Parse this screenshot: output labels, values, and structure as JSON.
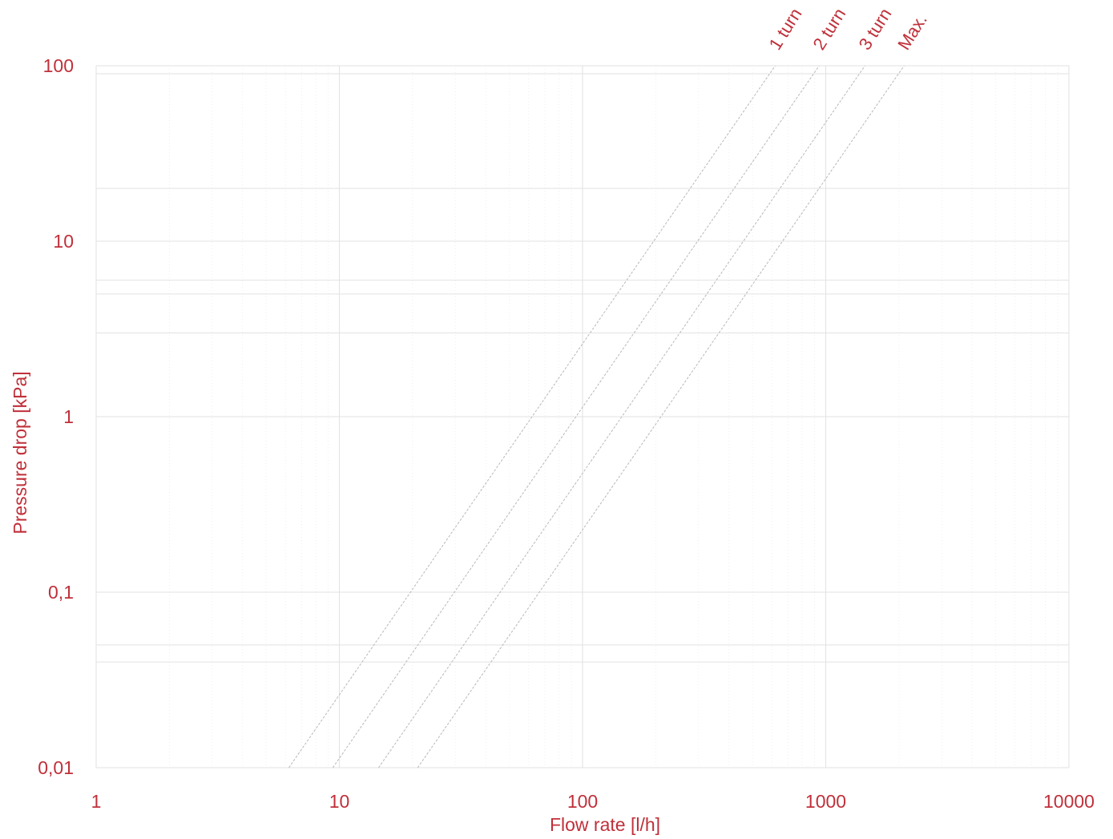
{
  "chart_data": {
    "type": "line",
    "xscale": "log",
    "yscale": "log",
    "xlim": [
      1,
      10000
    ],
    "ylim": [
      0.01,
      100
    ],
    "xlabel": "Flow rate [l/h]",
    "ylabel": "Pressure drop [kPa]",
    "x_ticks": [
      {
        "value": 1,
        "label": "1"
      },
      {
        "value": 10,
        "label": "10"
      },
      {
        "value": 100,
        "label": "100"
      },
      {
        "value": 1000,
        "label": "1000"
      },
      {
        "value": 10000,
        "label": "10000"
      }
    ],
    "y_ticks": [
      {
        "value": 0.01,
        "label": "0,01"
      },
      {
        "value": 0.1,
        "label": "0,1"
      },
      {
        "value": 1,
        "label": "1"
      },
      {
        "value": 10,
        "label": "10"
      },
      {
        "value": 100,
        "label": "100"
      }
    ],
    "series": [
      {
        "name": "1 turn",
        "x": [
          6.2,
          620
        ],
        "y": [
          0.01,
          100
        ]
      },
      {
        "name": "2 turn",
        "x": [
          9.4,
          940
        ],
        "y": [
          0.01,
          100
        ]
      },
      {
        "name": "3 turn",
        "x": [
          14.5,
          1450
        ],
        "y": [
          0.01,
          100
        ]
      },
      {
        "name": "Max.",
        "x": [
          21,
          2100
        ],
        "y": [
          0.01,
          100
        ]
      }
    ],
    "grid": true,
    "colors": {
      "text": "#c0303a",
      "grid": "#e2e2e2",
      "curve": "#b8b8b8"
    }
  }
}
